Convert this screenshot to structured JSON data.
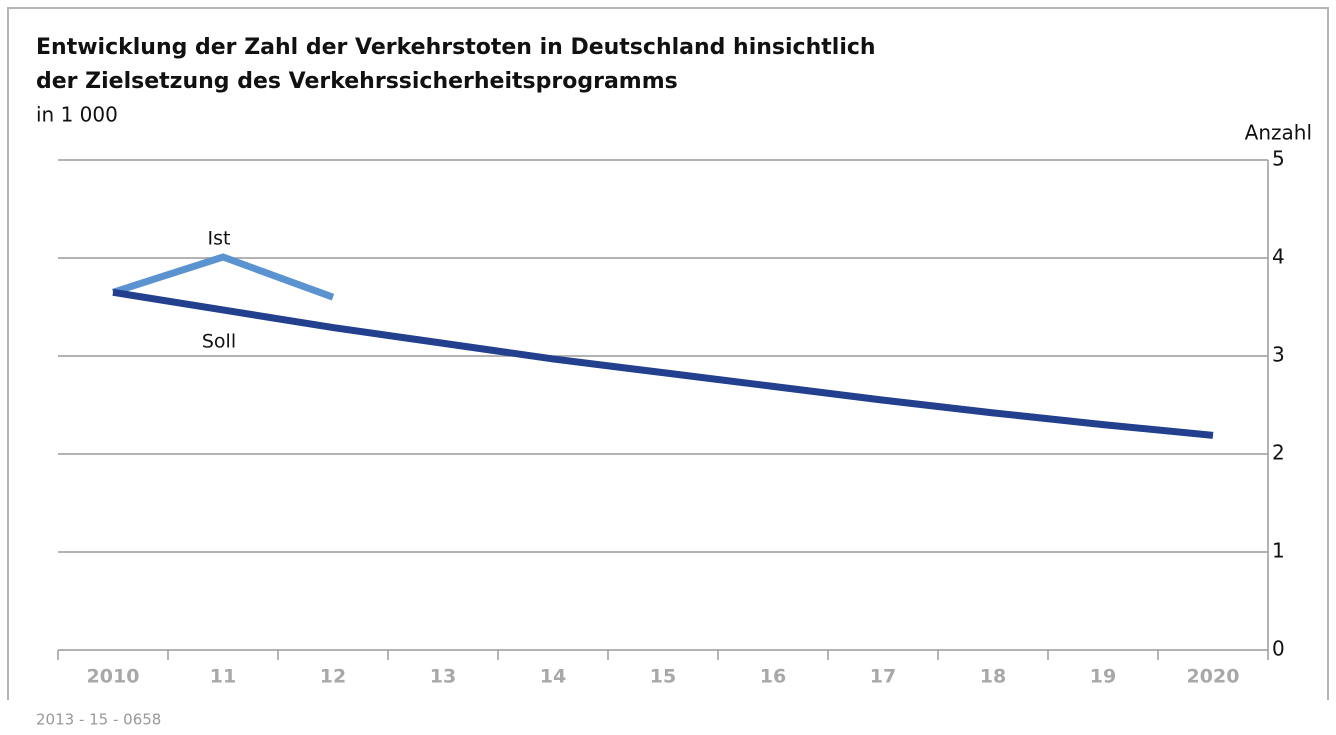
{
  "chart_data": {
    "type": "line",
    "title": [
      "Entwicklung der Zahl der Verkehrstoten in Deutschland hinsichtlich",
      "der Zielsetzung des Verkehrssicherheitsprogramms"
    ],
    "subtitle": "in 1 000",
    "y_axis_label": "Anzahl",
    "source": "2013 - 15 - 0658",
    "categories": [
      "2010",
      "11",
      "12",
      "13",
      "14",
      "15",
      "16",
      "17",
      "18",
      "19",
      "2020"
    ],
    "series": [
      {
        "name": "Ist",
        "color": "#5b93d1",
        "values": [
          3.65,
          4.01,
          3.6,
          null,
          null,
          null,
          null,
          null,
          null,
          null,
          null
        ]
      },
      {
        "name": "Soll",
        "color": "#23408f",
        "values": [
          3.65,
          3.47,
          3.29,
          3.13,
          2.97,
          2.83,
          2.69,
          2.55,
          2.42,
          2.3,
          2.19
        ]
      }
    ],
    "ylim": [
      0,
      5
    ],
    "yticks": [
      0,
      1,
      2,
      3,
      4,
      5
    ],
    "y_axis_side": "right",
    "grid": true
  }
}
